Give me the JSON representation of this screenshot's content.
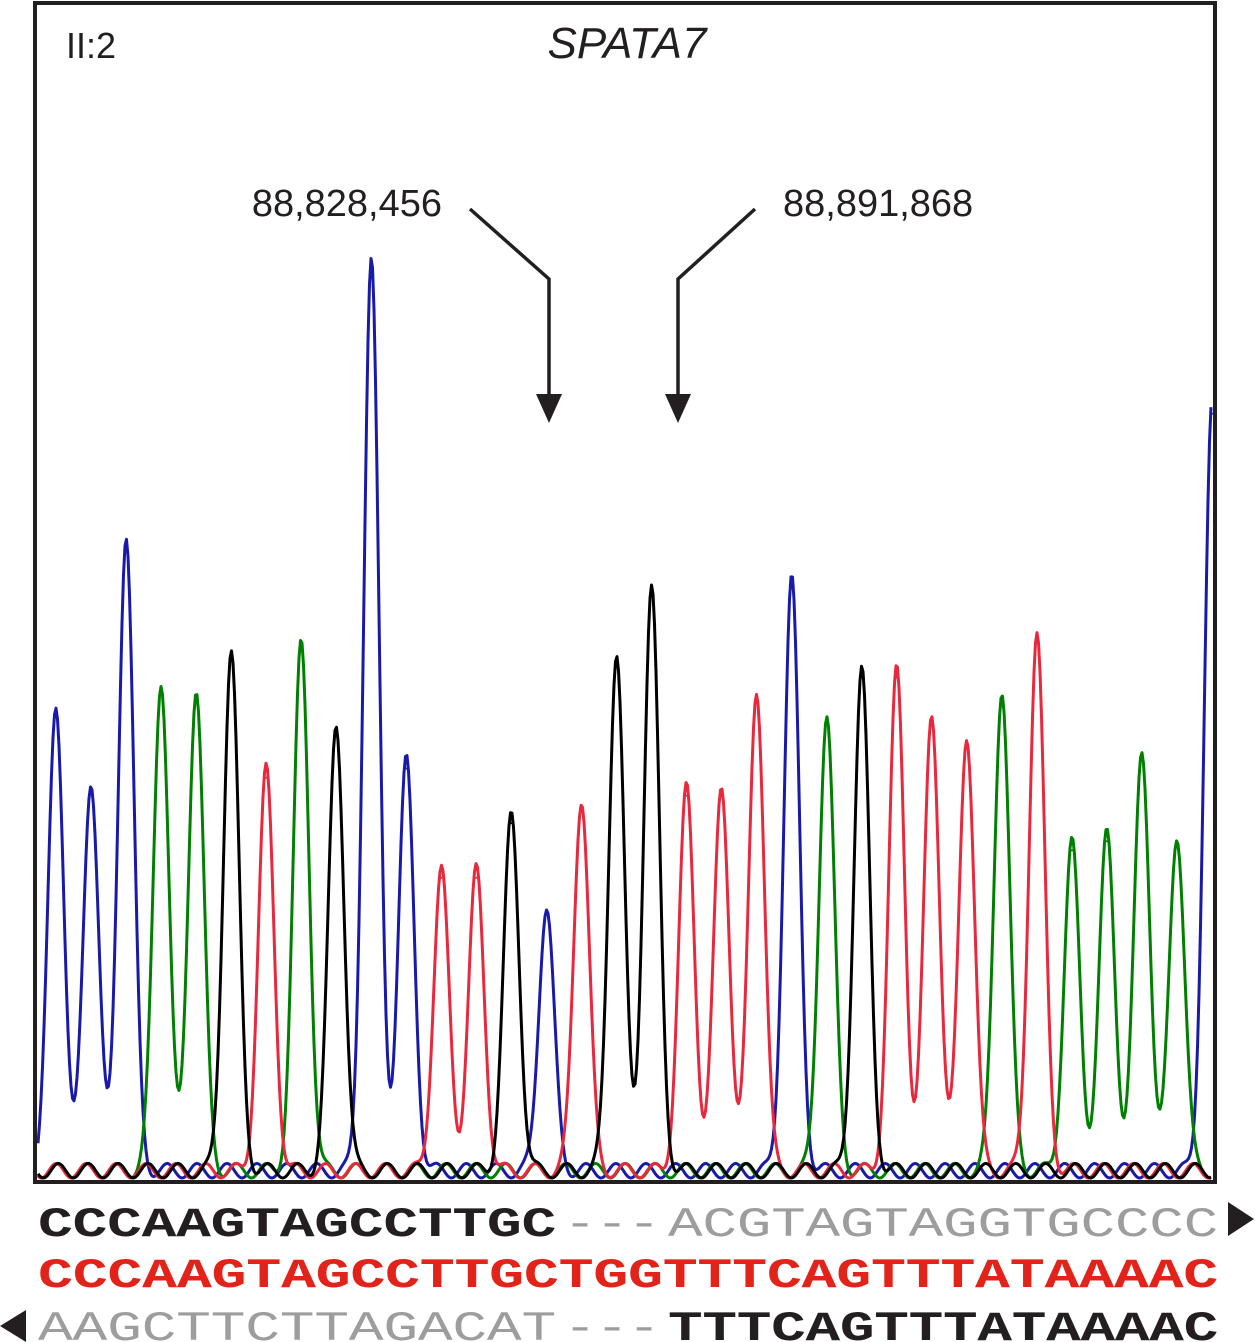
{
  "sample_label": "II:2",
  "gene": "SPATA7",
  "breakpoint_left": "88,828,456",
  "breakpoint_right": "88,891,868",
  "colors": {
    "A": "#008000",
    "C": "#1a1aa8",
    "G": "#000000",
    "T": "#e8283c",
    "reference_dark": "#231f20",
    "reference_light": "#9d9d9d",
    "observed": "#e2231a"
  },
  "chart_data": {
    "type": "chromatogram",
    "base_calls": "CCCAAGTAGCCTTGCTGGTTTCAGTTTATAAAAC",
    "peaks": [
      {
        "base": "C",
        "height": 0.51
      },
      {
        "base": "C",
        "height": 0.43
      },
      {
        "base": "C",
        "height": 0.7
      },
      {
        "base": "A",
        "height": 0.54
      },
      {
        "base": "A",
        "height": 0.53
      },
      {
        "base": "G",
        "height": 0.57
      },
      {
        "base": "T",
        "height": 0.44
      },
      {
        "base": "A",
        "height": 0.58
      },
      {
        "base": "G",
        "height": 0.49
      },
      {
        "base": "C",
        "height": 1.0
      },
      {
        "base": "C",
        "height": 0.45
      },
      {
        "base": "T",
        "height": 0.33
      },
      {
        "base": "T",
        "height": 0.33
      },
      {
        "base": "G",
        "height": 0.39
      },
      {
        "base": "C",
        "height": 0.29
      },
      {
        "base": "T",
        "height": 0.41
      },
      {
        "base": "G",
        "height": 0.57
      },
      {
        "base": "G",
        "height": 0.64
      },
      {
        "base": "T",
        "height": 0.42
      },
      {
        "base": "T",
        "height": 0.42
      },
      {
        "base": "T",
        "height": 0.53
      },
      {
        "base": "C",
        "height": 0.65
      },
      {
        "base": "A",
        "height": 0.5
      },
      {
        "base": "G",
        "height": 0.55
      },
      {
        "base": "T",
        "height": 0.55
      },
      {
        "base": "T",
        "height": 0.5
      },
      {
        "base": "T",
        "height": 0.48
      },
      {
        "base": "A",
        "height": 0.53
      },
      {
        "base": "T",
        "height": 0.59
      },
      {
        "base": "A",
        "height": 0.36
      },
      {
        "base": "A",
        "height": 0.37
      },
      {
        "base": "A",
        "height": 0.46
      },
      {
        "base": "A",
        "height": 0.37
      },
      {
        "base": "C",
        "height": 0.84
      }
    ]
  },
  "sequences": {
    "forward_reference": {
      "matched": "CCCAAGTAGCCTTGC",
      "gap": "---",
      "deleted": "ACGTAGTAGGTGCCCC"
    },
    "observed": "CCCAAGTAGCCTTGCTGGTTTCAGTTTATAAAAC",
    "reverse_reference": {
      "deleted": "AAGCTTCTTAGACAT",
      "gap": "---",
      "matched": "TTTCAGTTTATAAAAC"
    }
  }
}
